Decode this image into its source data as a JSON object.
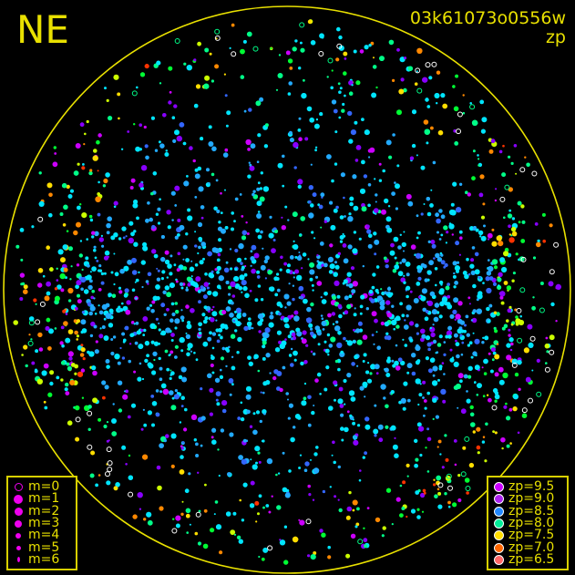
{
  "header": {
    "direction": "NE",
    "frame_id": "03k61073o0556w",
    "quantity": "zp"
  },
  "chart_data": {
    "type": "scatter",
    "title": "03k61073o0556w",
    "subtitle": "zp",
    "projection": "all-sky circle",
    "horizon_circle_color": "#e8e000",
    "magnitude_legend": {
      "placement": "bottom-left",
      "entries": [
        {
          "label": "m=0",
          "style": "ring"
        },
        {
          "label": "m=1",
          "style": "dot"
        },
        {
          "label": "m=2",
          "style": "dot"
        },
        {
          "label": "m=3",
          "style": "dot"
        },
        {
          "label": "m=4",
          "style": "dot"
        },
        {
          "label": "m=5",
          "style": "dot"
        },
        {
          "label": "m=6",
          "style": "dot"
        }
      ],
      "symbol_color": "#ee00ee"
    },
    "zp_legend": {
      "placement": "bottom-right",
      "entries": [
        {
          "label": "zp=9.5",
          "value": 9.5,
          "color": "#cc00ff"
        },
        {
          "label": "zp=9.0",
          "value": 9.0,
          "color": "#aa22ee"
        },
        {
          "label": "zp=8.5",
          "value": 8.5,
          "color": "#2288ff"
        },
        {
          "label": "zp=8.0",
          "value": 8.0,
          "color": "#00ee99"
        },
        {
          "label": "zp=7.5",
          "value": 7.5,
          "color": "#ffdd00"
        },
        {
          "label": "zp=7.0",
          "value": 7.0,
          "color": "#ff6600"
        },
        {
          "label": "zp=6.5",
          "value": 6.5,
          "color": "#ff6666"
        }
      ]
    },
    "point_colors": [
      "#00e5ff",
      "#22aaff",
      "#3366ff",
      "#8800ff",
      "#cc00ff",
      "#00ff88",
      "#00ff33",
      "#ccff00",
      "#ffdd00",
      "#ff8800",
      "#ff3300",
      "#ffffff"
    ]
  }
}
